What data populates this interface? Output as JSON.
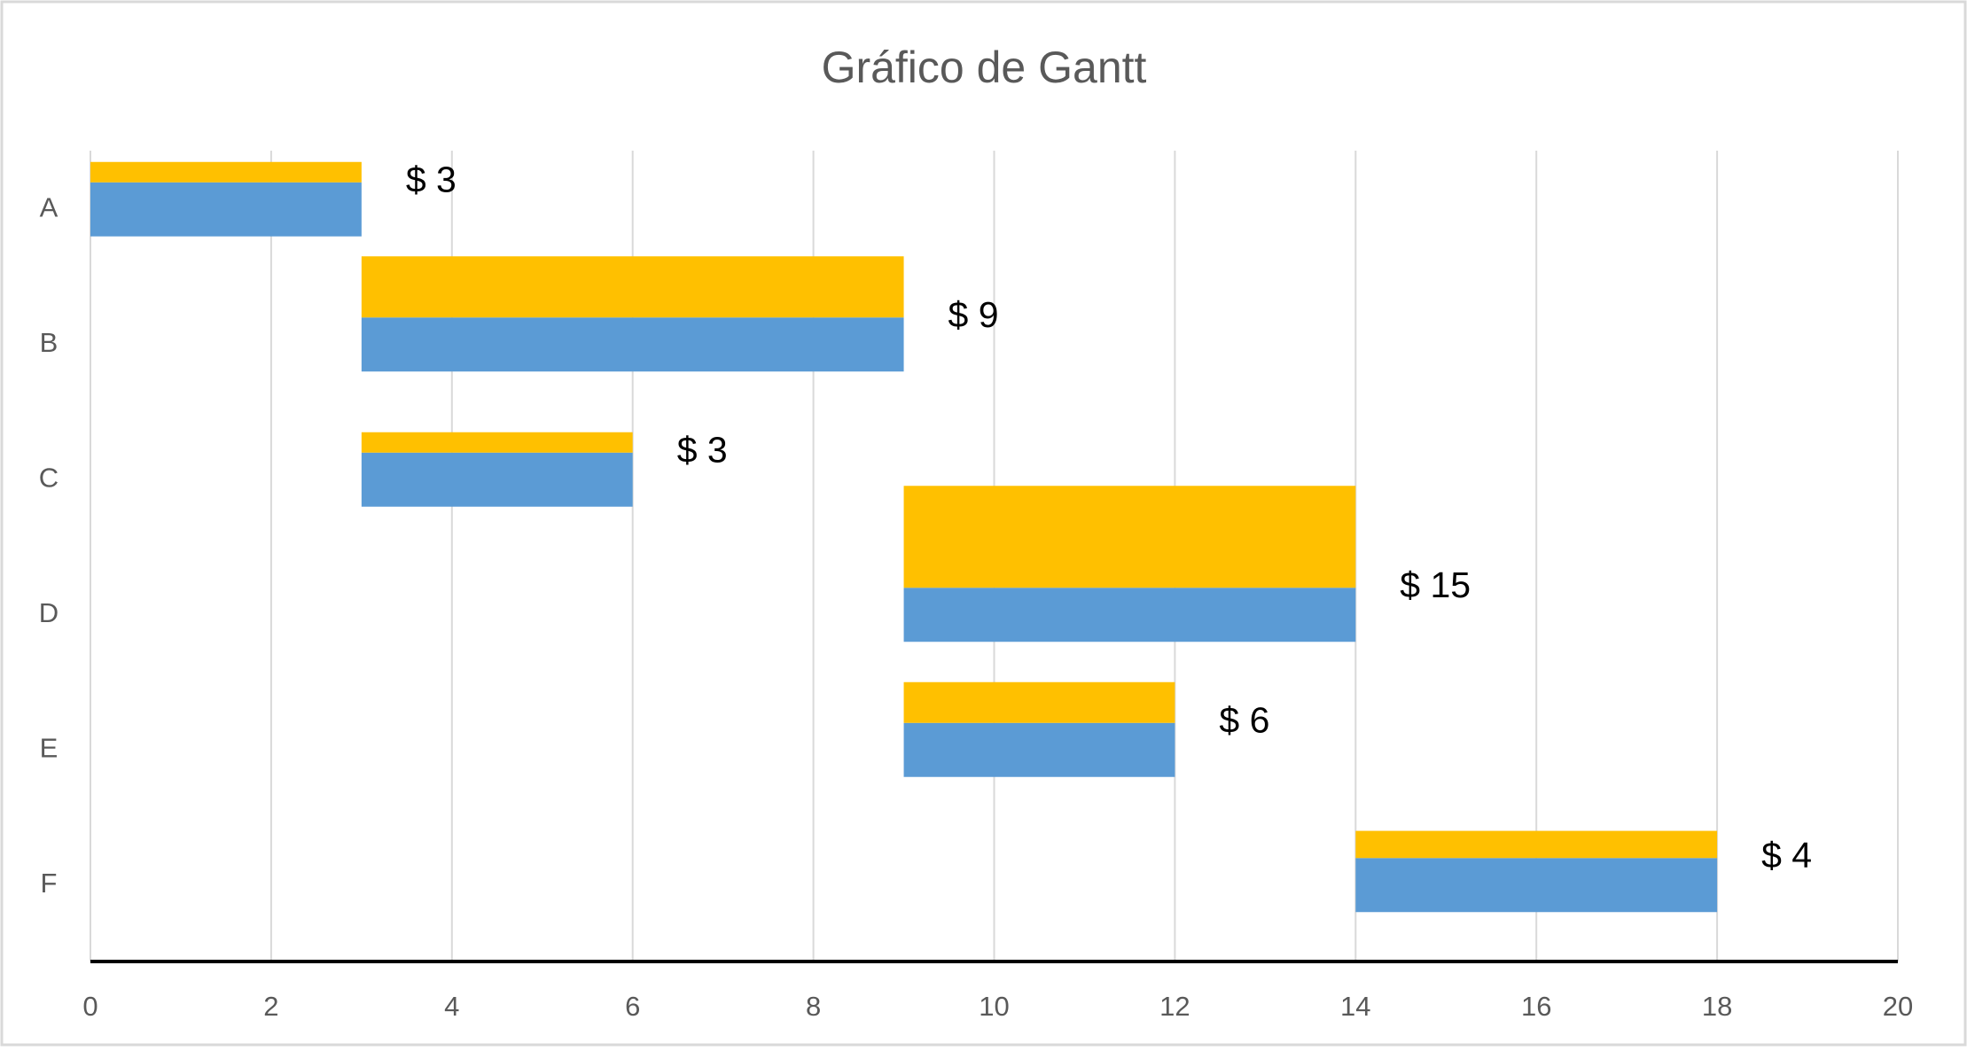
{
  "chart_data": {
    "type": "gantt",
    "title": "Gráfico de Gantt",
    "categories": [
      "A",
      "B",
      "C",
      "D",
      "E",
      "F"
    ],
    "series": [
      {
        "color": "#5b9bd5",
        "start": [
          0,
          3,
          3,
          9,
          9,
          14
        ],
        "values": [
          3,
          6,
          3,
          5,
          3,
          4
        ]
      },
      {
        "color": "#ffc000",
        "values": [
          3,
          9,
          3,
          15,
          6,
          4
        ],
        "value_labels": [
          "$ 3",
          "$ 9",
          "$ 3",
          "$ 15",
          "$ 6",
          "$ 4"
        ]
      }
    ],
    "xlim": [
      0,
      20
    ],
    "xticks": [
      0,
      2,
      4,
      6,
      8,
      10,
      12,
      14,
      16,
      18,
      20
    ],
    "grid": true
  }
}
